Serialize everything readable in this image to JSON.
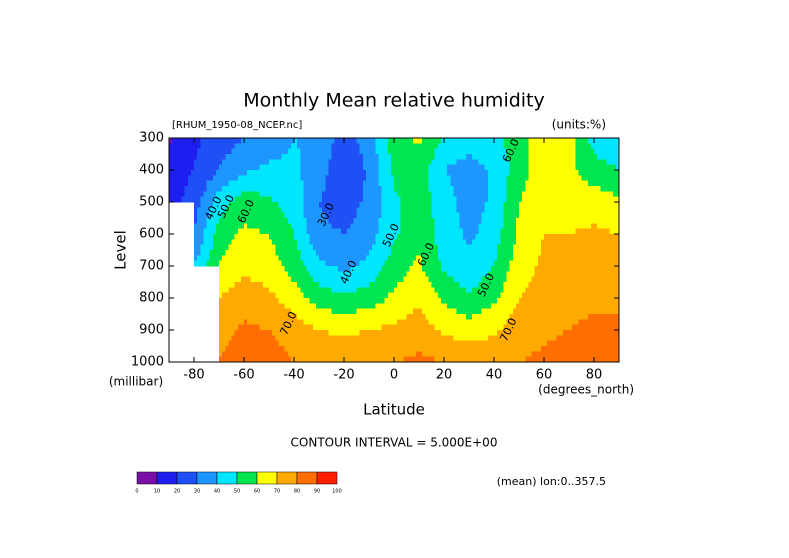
{
  "chart_data": {
    "type": "contour",
    "title": "Monthly Mean relative humidity",
    "subtitle": "[RHUM_1950-08_NCEP.nc]",
    "units": "(units:%)",
    "x_label": "Latitude",
    "x_unit": "(degrees_north)",
    "y_label": "Level",
    "y_unit": "(millibar)",
    "contour_note": "CONTOUR INTERVAL = 5.000E+00",
    "footer": "(mean) lon:0..357.5",
    "xlim": [
      -90,
      90
    ],
    "xticks": [
      -80,
      -60,
      -40,
      -20,
      0,
      20,
      40,
      60,
      80
    ],
    "ylim": [
      300,
      1000
    ],
    "yticks": [
      300,
      400,
      500,
      600,
      700,
      800,
      900,
      1000
    ],
    "y_inverted": true,
    "x": [
      -90,
      -80,
      -70,
      -60,
      -50,
      -40,
      -30,
      -20,
      -10,
      0,
      10,
      20,
      30,
      40,
      50,
      60,
      70,
      80,
      90
    ],
    "y": [
      300,
      400,
      500,
      600,
      700,
      800,
      900,
      1000
    ],
    "z": [
      [
        8,
        18,
        25,
        30,
        35,
        40,
        38,
        25,
        35,
        55,
        62,
        50,
        45,
        48,
        55,
        68,
        65,
        45,
        40
      ],
      [
        15,
        20,
        30,
        38,
        42,
        42,
        35,
        20,
        32,
        52,
        55,
        40,
        35,
        42,
        55,
        68,
        62,
        55,
        50
      ],
      [
        15,
        25,
        45,
        55,
        52,
        45,
        30,
        25,
        32,
        48,
        55,
        45,
        35,
        42,
        60,
        65,
        65,
        65,
        62
      ],
      [
        null,
        30,
        55,
        62,
        60,
        50,
        32,
        30,
        36,
        48,
        58,
        45,
        38,
        45,
        62,
        70,
        70,
        72,
        70
      ],
      [
        null,
        40,
        60,
        68,
        65,
        55,
        42,
        38,
        42,
        55,
        62,
        48,
        42,
        50,
        65,
        72,
        75,
        76,
        75
      ],
      [
        null,
        null,
        70,
        75,
        72,
        65,
        55,
        52,
        55,
        62,
        68,
        58,
        52,
        58,
        70,
        75,
        78,
        78,
        78
      ],
      [
        null,
        null,
        75,
        82,
        80,
        75,
        70,
        68,
        70,
        72,
        75,
        68,
        65,
        68,
        75,
        78,
        80,
        82,
        82
      ],
      [
        null,
        null,
        80,
        88,
        85,
        80,
        78,
        78,
        80,
        80,
        82,
        80,
        78,
        78,
        80,
        82,
        85,
        90,
        88
      ]
    ],
    "levels": [
      0,
      10,
      20,
      30,
      40,
      50,
      60,
      70,
      80,
      90,
      100
    ],
    "colors": [
      "#7a0fa8",
      "#1e1ef0",
      "#1e50f5",
      "#1e96ff",
      "#00e6ff",
      "#00e650",
      "#ffff00",
      "#ffaa00",
      "#ff6e00",
      "#ff1e00"
    ],
    "annotations": [
      {
        "text": "40.0",
        "x": -72,
        "y": 520
      },
      {
        "text": "50.0",
        "x": -67,
        "y": 515
      },
      {
        "text": "60.0",
        "x": -59,
        "y": 530
      },
      {
        "text": "30.0",
        "x": -27,
        "y": 540
      },
      {
        "text": "40.0",
        "x": -18,
        "y": 720
      },
      {
        "text": "50.0",
        "x": -1,
        "y": 605
      },
      {
        "text": "60.0",
        "x": 13,
        "y": 665
      },
      {
        "text": "50.0",
        "x": 37,
        "y": 760
      },
      {
        "text": "70.0",
        "x": -42,
        "y": 880
      },
      {
        "text": "70.0",
        "x": 46,
        "y": 900
      },
      {
        "text": "60.0",
        "x": 47,
        "y": 340
      }
    ]
  }
}
